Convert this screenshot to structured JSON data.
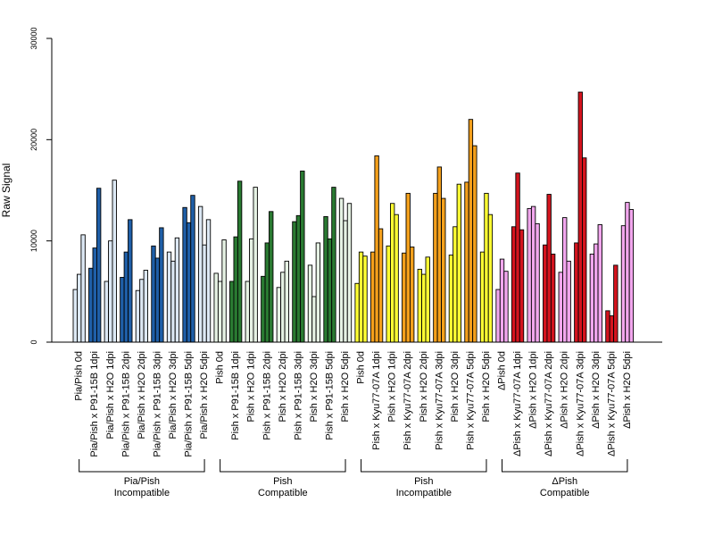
{
  "chart_data": {
    "type": "bar",
    "title": "",
    "xlabel": "",
    "ylabel": "Raw Signal",
    "ylim": [
      0,
      30000
    ],
    "yticks": [
      0,
      10000,
      20000,
      30000
    ],
    "grid": false,
    "categories": [
      {
        "label": "Pia/Pish 0d",
        "values": [
          5200,
          6700,
          10600
        ],
        "fill": "#dce8f4"
      },
      {
        "label": "Pia/Pish x P91-15B 1dpi",
        "values": [
          7300,
          9300,
          15200
        ],
        "fill": "#1f5fa8"
      },
      {
        "label": "Pia/Pish x H2O 1dpi",
        "values": [
          6000,
          10000,
          16000
        ],
        "fill": "#dce8f4"
      },
      {
        "label": "Pia/Pish x P91-15B 2dpi",
        "values": [
          6400,
          8900,
          12100
        ],
        "fill": "#1f5fa8"
      },
      {
        "label": "Pia/Pish x H2O 2dpi",
        "values": [
          5100,
          6200,
          7100
        ],
        "fill": "#dce8f4"
      },
      {
        "label": "Pia/Pish x P91-15B 3dpi",
        "values": [
          9500,
          8300,
          11300
        ],
        "fill": "#1f5fa8"
      },
      {
        "label": "Pia/Pish x H2O 3dpi",
        "values": [
          8900,
          8000,
          10300
        ],
        "fill": "#dce8f4"
      },
      {
        "label": "Pia/Pish x P91-15B 5dpi",
        "values": [
          13300,
          11800,
          14500
        ],
        "fill": "#1f5fa8"
      },
      {
        "label": "Pia/Pish x H2O 5dpi",
        "values": [
          13400,
          9600,
          12100
        ],
        "fill": "#dce8f4"
      },
      {
        "label": "Pish 0d",
        "values": [
          6800,
          6000,
          10100
        ],
        "fill": "#e6f2e4"
      },
      {
        "label": "Pish x P91-15B 1dpi",
        "values": [
          6000,
          10400,
          15900
        ],
        "fill": "#2a7a32"
      },
      {
        "label": "Pish x H2O 1dpi",
        "values": [
          6000,
          10200,
          15300
        ],
        "fill": "#e6f2e4"
      },
      {
        "label": "Pish x P91-15B 2dpi",
        "values": [
          6500,
          9800,
          12900
        ],
        "fill": "#2a7a32"
      },
      {
        "label": "Pish x H2O 2dpi",
        "values": [
          5400,
          6900,
          8000
        ],
        "fill": "#e6f2e4"
      },
      {
        "label": "Pish x P91-15B 3dpi",
        "values": [
          11900,
          12500,
          16900
        ],
        "fill": "#2a7a32"
      },
      {
        "label": "Pish x H2O 3dpi",
        "values": [
          7600,
          4500,
          9800
        ],
        "fill": "#e6f2e4"
      },
      {
        "label": "Pish x P91-15B 5dpi",
        "values": [
          12400,
          10200,
          15300
        ],
        "fill": "#2a7a32"
      },
      {
        "label": "Pish x H2O 5dpi",
        "values": [
          14200,
          12000,
          13700
        ],
        "fill": "#e6f2e4"
      },
      {
        "label": "Pish 0d",
        "values": [
          5800,
          8900,
          8500
        ],
        "fill": "#ffff33"
      },
      {
        "label": "Pish x Kyu77-07A 1dpi",
        "values": [
          8900,
          18400,
          11200
        ],
        "fill": "#f4a01c"
      },
      {
        "label": "Pish x H2O 1dpi",
        "values": [
          9500,
          13700,
          12600
        ],
        "fill": "#ffff33"
      },
      {
        "label": "Pish x Kyu77-07A 2dpi",
        "values": [
          8800,
          14700,
          9400
        ],
        "fill": "#f4a01c"
      },
      {
        "label": "Pish x H2O 2dpi",
        "values": [
          7200,
          6700,
          8400
        ],
        "fill": "#ffff33"
      },
      {
        "label": "Pish x Kyu77-07A 3dpi",
        "values": [
          14700,
          17300,
          14200
        ],
        "fill": "#f4a01c"
      },
      {
        "label": "Pish x H2O 3dpi",
        "values": [
          8600,
          11400,
          15600
        ],
        "fill": "#ffff33"
      },
      {
        "label": "Pish x Kyu77-07A 5dpi",
        "values": [
          15800,
          22000,
          19400
        ],
        "fill": "#f4a01c"
      },
      {
        "label": "Pish x H2O 5dpi",
        "values": [
          8900,
          14700,
          12600
        ],
        "fill": "#ffff33"
      },
      {
        "label": "ΔPish 0d",
        "values": [
          5200,
          8200,
          7000
        ],
        "fill": "#f2a7ee"
      },
      {
        "label": "ΔPish x Kyu77-07A 1dpi",
        "values": [
          11400,
          16700,
          11100
        ],
        "fill": "#d4141e"
      },
      {
        "label": "ΔPish x H2O 1dpi",
        "values": [
          13200,
          13400,
          11700
        ],
        "fill": "#f2a7ee"
      },
      {
        "label": "ΔPish x Kyu77-07A 2dpi",
        "values": [
          9600,
          14600,
          8700
        ],
        "fill": "#d4141e"
      },
      {
        "label": "ΔPish x H2O 2dpi",
        "values": [
          6900,
          12300,
          8000
        ],
        "fill": "#f2a7ee"
      },
      {
        "label": "ΔPish x Kyu77-07A 3dpi",
        "values": [
          9800,
          24700,
          18200
        ],
        "fill": "#d4141e"
      },
      {
        "label": "ΔPish x H2O 3dpi",
        "values": [
          8700,
          9700,
          11600
        ],
        "fill": "#f2a7ee"
      },
      {
        "label": "ΔPish x Kyu77-07A 5dpi",
        "values": [
          3100,
          2600,
          7600
        ],
        "fill": "#d4141e"
      },
      {
        "label": "ΔPish x H2O 5dpi",
        "values": [
          11500,
          13800,
          13100
        ],
        "fill": "#f2a7ee"
      }
    ],
    "groups": [
      {
        "line1": "Pia/Pish",
        "line2": "Incompatible",
        "start": 0,
        "end": 8
      },
      {
        "line1": "Pish",
        "line2": "Compatible",
        "start": 9,
        "end": 17
      },
      {
        "line1": "Pish",
        "line2": "Incompatible",
        "start": 18,
        "end": 26
      },
      {
        "line1": "ΔPish",
        "line2": "Compatible",
        "start": 27,
        "end": 35
      }
    ]
  }
}
